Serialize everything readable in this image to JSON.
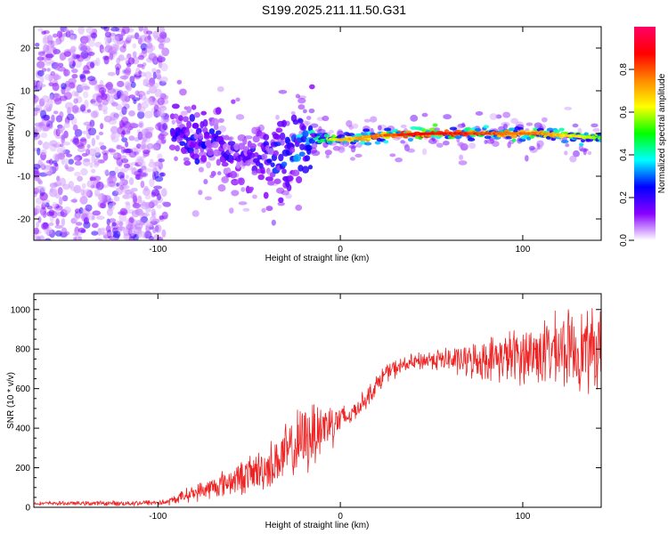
{
  "title": "S199.2025.211.11.50.G31",
  "chart_data": [
    {
      "type": "heatmap",
      "xlabel": "Height of straight line (km)",
      "ylabel": "Frequency (Hz)",
      "xlim": [
        -168,
        143
      ],
      "ylim": [
        -25,
        25
      ],
      "xticks": [
        -100,
        0,
        100
      ],
      "yticks": [
        -20,
        -10,
        0,
        10,
        20
      ],
      "colorbar": {
        "label": "Normalized spectral amplitude",
        "range": [
          0,
          1
        ],
        "ticks": [
          "0.0",
          "0.2",
          "0.4",
          "0.6",
          "0.8"
        ],
        "colors": [
          "#ffffff",
          "#8800ff",
          "#0000ff",
          "#00ffff",
          "#00ff00",
          "#ffff00",
          "#ff8800",
          "#ff0000",
          "#ff0066"
        ]
      },
      "ridge": [
        {
          "x": -90,
          "y": -1,
          "a": 0.25
        },
        {
          "x": -70,
          "y": -2,
          "a": 0.25
        },
        {
          "x": -50,
          "y": -7,
          "a": 0.2
        },
        {
          "x": -30,
          "y": -4,
          "a": 0.3
        },
        {
          "x": -15,
          "y": -1,
          "a": 0.45
        },
        {
          "x": 0,
          "y": -1.5,
          "a": 0.7
        },
        {
          "x": 20,
          "y": -0.5,
          "a": 0.8
        },
        {
          "x": 50,
          "y": 0,
          "a": 0.95
        },
        {
          "x": 80,
          "y": 0,
          "a": 0.85
        },
        {
          "x": 110,
          "y": 0,
          "a": 0.8
        },
        {
          "x": 140,
          "y": -1,
          "a": 0.6
        }
      ]
    },
    {
      "type": "line",
      "xlabel": "Height of straight line (km)",
      "ylabel": "SNR (10 * v/v)",
      "xlim": [
        -168,
        143
      ],
      "ylim": [
        0,
        1080
      ],
      "xticks": [
        -100,
        0,
        100
      ],
      "yticks": [
        0,
        200,
        400,
        600,
        800,
        1000
      ],
      "series": [
        {
          "color": "#ee2222",
          "envelope": {
            "x": [
              -168,
              -120,
              -95,
              -85,
              -70,
              -55,
              -40,
              -25,
              -15,
              -5,
              5,
              15,
              25,
              35,
              50,
              70,
              90,
              110,
              125,
              143
            ],
            "mean": [
              20,
              20,
              25,
              60,
              100,
              150,
              200,
              300,
              380,
              430,
              460,
              560,
              680,
              720,
              750,
              740,
              760,
              780,
              800,
              790
            ],
            "spread": [
              10,
              15,
              20,
              40,
              70,
              100,
              140,
              200,
              220,
              150,
              60,
              60,
              60,
              50,
              60,
              100,
              150,
              200,
              230,
              250
            ]
          }
        }
      ]
    }
  ]
}
